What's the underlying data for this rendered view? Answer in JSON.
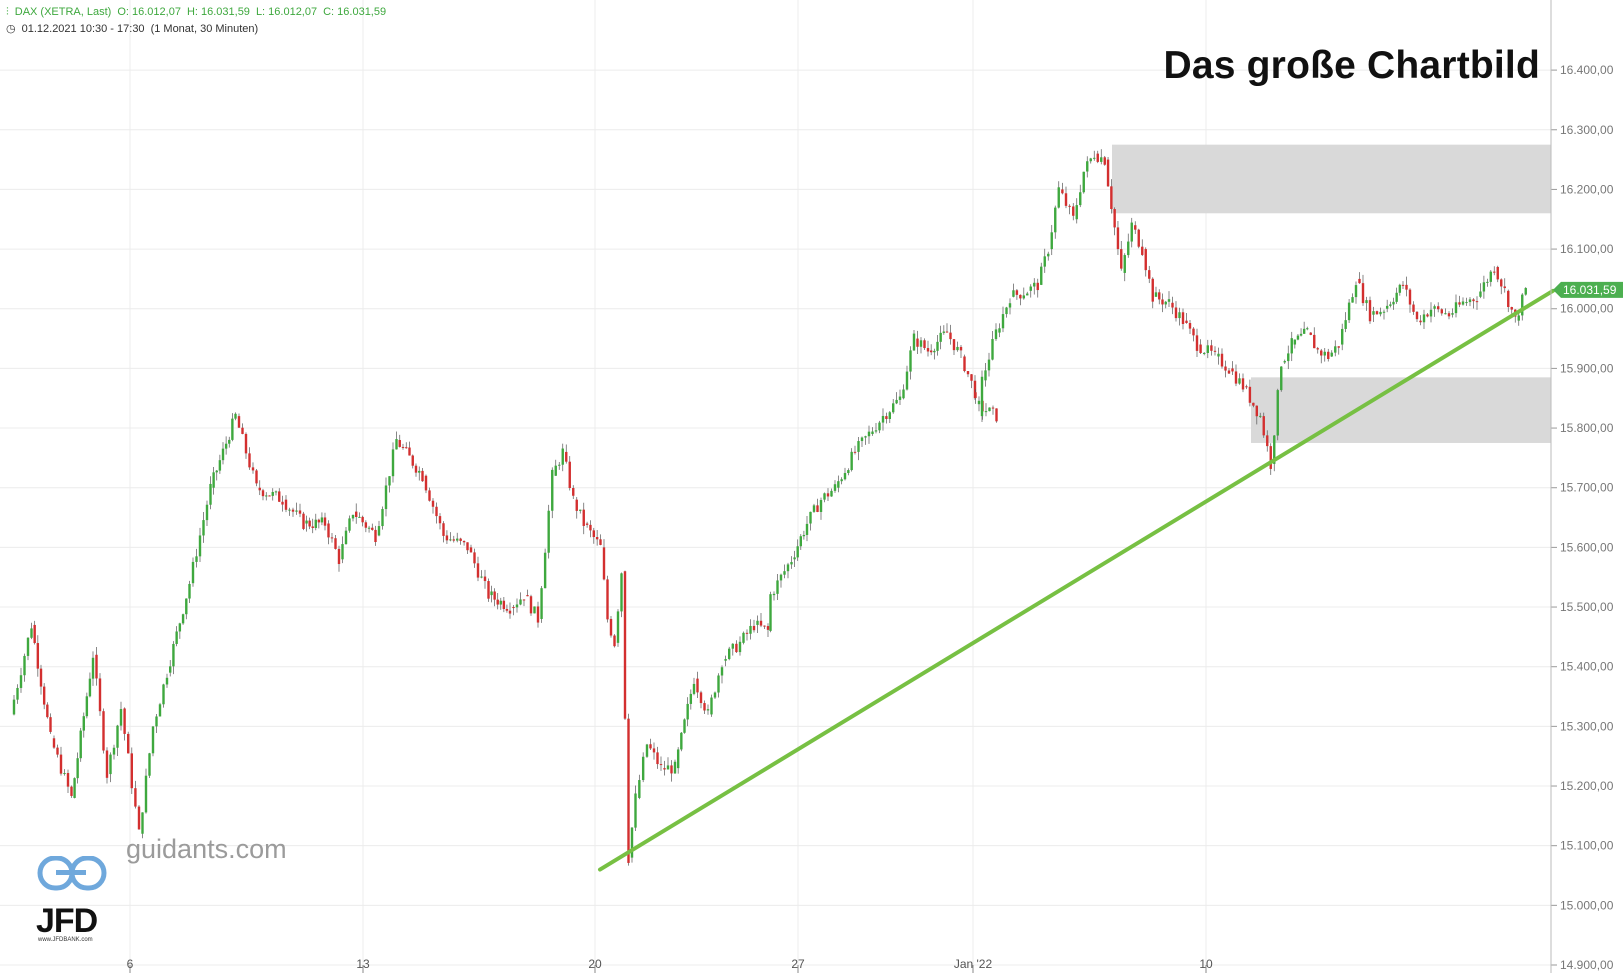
{
  "header": {
    "symbol": "DAX (XETRA, Last)",
    "open": "O: 16.012,07",
    "high": "H: 16.031,59",
    "low": "L: 16.012,07",
    "close": "C: 16.031,59",
    "period": "01.12.2021 10:30 - 17:30",
    "interval": "(1 Monat, 30 Minuten)"
  },
  "title": "Das große Chartbild",
  "branding": {
    "site": "guidants.com",
    "logo": "JFD",
    "logo_sub": "www.JFDBANK.com"
  },
  "colors": {
    "up": "#3ea83e",
    "down": "#d32f2f",
    "trendline": "#77c043",
    "zone": "#d9d9d9",
    "price_tag": "#4caf50"
  },
  "chart_data": {
    "type": "candlestick",
    "title": "Das große Chartbild",
    "ylim": [
      14900,
      16450
    ],
    "y_ticks": [
      "14.900,00",
      "15.000,00",
      "15.100,00",
      "15.200,00",
      "15.300,00",
      "15.400,00",
      "15.500,00",
      "15.600,00",
      "15.700,00",
      "15.800,00",
      "15.900,00",
      "16.000,00",
      "16.100,00",
      "16.200,00",
      "16.300,00",
      "16.400,00"
    ],
    "x_ticks": [
      "6",
      "13",
      "20",
      "27",
      "Jan '22",
      "10"
    ],
    "last_price": "16.031,59",
    "grid": true,
    "trendline": {
      "from": {
        "date": "2021-12-20",
        "y": 15060
      },
      "to": {
        "date": "2022-01-19",
        "y": 16030
      }
    },
    "zones": [
      {
        "from": "2022-01-06",
        "to": "2022-01-19",
        "y_low": 16160,
        "y_high": 16275
      },
      {
        "from": "2022-01-11",
        "to": "2022-01-19",
        "y_low": 15775,
        "y_high": 15885
      }
    ],
    "path_points": [
      {
        "date": "2021-12-01",
        "y": 15320
      },
      {
        "date": "2021-12-01",
        "y": 15470
      },
      {
        "date": "2021-12-02",
        "y": 15280
      },
      {
        "date": "2021-12-02",
        "y": 15180
      },
      {
        "date": "2021-12-03",
        "y": 15420
      },
      {
        "date": "2021-12-03",
        "y": 15220
      },
      {
        "date": "2021-12-03",
        "y": 15330
      },
      {
        "date": "2021-12-06",
        "y": 15120
      },
      {
        "date": "2021-12-06",
        "y": 15300
      },
      {
        "date": "2021-12-06",
        "y": 15390
      },
      {
        "date": "2021-12-07",
        "y": 15540
      },
      {
        "date": "2021-12-07",
        "y": 15700
      },
      {
        "date": "2021-12-08",
        "y": 15820
      },
      {
        "date": "2021-12-08",
        "y": 15700
      },
      {
        "date": "2021-12-09",
        "y": 15680
      },
      {
        "date": "2021-12-09",
        "y": 15640
      },
      {
        "date": "2021-12-10",
        "y": 15640
      },
      {
        "date": "2021-12-10",
        "y": 15580
      },
      {
        "date": "2021-12-10",
        "y": 15660
      },
      {
        "date": "2021-12-13",
        "y": 15620
      },
      {
        "date": "2021-12-13",
        "y": 15780
      },
      {
        "date": "2021-12-14",
        "y": 15720
      },
      {
        "date": "2021-12-14",
        "y": 15620
      },
      {
        "date": "2021-12-15",
        "y": 15600
      },
      {
        "date": "2021-12-15",
        "y": 15520
      },
      {
        "date": "2021-12-16",
        "y": 15500
      },
      {
        "date": "2021-12-16",
        "y": 15520
      },
      {
        "date": "2021-12-16",
        "y": 15480
      },
      {
        "date": "2021-12-17",
        "y": 15720
      },
      {
        "date": "2021-12-17",
        "y": 15760
      },
      {
        "date": "2021-12-17",
        "y": 15680
      },
      {
        "date": "2021-12-17",
        "y": 15640
      },
      {
        "date": "2021-12-20",
        "y": 15600
      },
      {
        "date": "2021-12-20",
        "y": 15480
      },
      {
        "date": "2021-12-20",
        "y": 15440
      },
      {
        "date": "2021-12-20",
        "y": 15560
      },
      {
        "date": "2021-12-20",
        "y": 15080
      },
      {
        "date": "2021-12-20",
        "y": 15180
      },
      {
        "date": "2021-12-21",
        "y": 15270
      },
      {
        "date": "2021-12-21",
        "y": 15230
      },
      {
        "date": "2021-12-21",
        "y": 15230
      },
      {
        "date": "2021-12-22",
        "y": 15380
      },
      {
        "date": "2021-12-22",
        "y": 15320
      },
      {
        "date": "2021-12-22",
        "y": 15410
      },
      {
        "date": "2021-12-23",
        "y": 15440
      },
      {
        "date": "2021-12-23",
        "y": 15470
      },
      {
        "date": "2021-12-23",
        "y": 15460
      },
      {
        "date": "2021-12-24",
        "y": 15520
      },
      {
        "date": "2021-12-24",
        "y": 15580
      },
      {
        "date": "2021-12-27",
        "y": 15640
      },
      {
        "date": "2021-12-27",
        "y": 15680
      },
      {
        "date": "2021-12-27",
        "y": 15700
      },
      {
        "date": "2021-12-28",
        "y": 15760
      },
      {
        "date": "2021-12-28",
        "y": 15790
      },
      {
        "date": "2021-12-28",
        "y": 15820
      },
      {
        "date": "2021-12-29",
        "y": 15850
      },
      {
        "date": "2021-12-29",
        "y": 15950
      },
      {
        "date": "2021-12-29",
        "y": 15930
      },
      {
        "date": "2021-12-30",
        "y": 15960
      },
      {
        "date": "2021-12-30",
        "y": 15920
      },
      {
        "date": "2021-12-30",
        "y": 15860
      },
      {
        "date": "2021-12-31",
        "y": 15840
      },
      {
        "date": "2021-12-31",
        "y": 15820
      },
      {
        "date": "2022-01-03",
        "y": 15880
      },
      {
        "date": "2022-01-03",
        "y": 15960
      },
      {
        "date": "2022-01-03",
        "y": 16020
      },
      {
        "date": "2022-01-04",
        "y": 16030
      },
      {
        "date": "2022-01-04",
        "y": 16040
      },
      {
        "date": "2022-01-04",
        "y": 16100
      },
      {
        "date": "2022-01-04",
        "y": 16200
      },
      {
        "date": "2022-01-05",
        "y": 16150
      },
      {
        "date": "2022-01-05",
        "y": 16230
      },
      {
        "date": "2022-01-05",
        "y": 16260
      },
      {
        "date": "2022-01-05",
        "y": 16250
      },
      {
        "date": "2022-01-06",
        "y": 16060
      },
      {
        "date": "2022-01-06",
        "y": 16140
      },
      {
        "date": "2022-01-06",
        "y": 16100
      },
      {
        "date": "2022-01-06",
        "y": 16020
      },
      {
        "date": "2022-01-07",
        "y": 16010
      },
      {
        "date": "2022-01-07",
        "y": 15980
      },
      {
        "date": "2022-01-07",
        "y": 15940
      },
      {
        "date": "2022-01-10",
        "y": 15920
      },
      {
        "date": "2022-01-10",
        "y": 15900
      },
      {
        "date": "2022-01-10",
        "y": 15870
      },
      {
        "date": "2022-01-11",
        "y": 15820
      },
      {
        "date": "2022-01-11",
        "y": 15740
      },
      {
        "date": "2022-01-11",
        "y": 15910
      },
      {
        "date": "2022-01-11",
        "y": 15940
      },
      {
        "date": "2022-01-12",
        "y": 15960
      },
      {
        "date": "2022-01-12",
        "y": 15930
      },
      {
        "date": "2022-01-12",
        "y": 15920
      },
      {
        "date": "2022-01-12",
        "y": 15940
      },
      {
        "date": "2022-01-13",
        "y": 16050
      },
      {
        "date": "2022-01-13",
        "y": 15990
      },
      {
        "date": "2022-01-13",
        "y": 16000
      },
      {
        "date": "2022-01-14",
        "y": 16040
      },
      {
        "date": "2022-01-14",
        "y": 15980
      },
      {
        "date": "2022-01-14",
        "y": 16000
      },
      {
        "date": "2022-01-17",
        "y": 15990
      },
      {
        "date": "2022-01-17",
        "y": 16010
      },
      {
        "date": "2022-01-17",
        "y": 16020
      },
      {
        "date": "2022-01-18",
        "y": 16070
      },
      {
        "date": "2022-01-18",
        "y": 16030
      },
      {
        "date": "2022-01-18",
        "y": 15980
      },
      {
        "date": "2022-01-18",
        "y": 16031.59
      }
    ]
  }
}
